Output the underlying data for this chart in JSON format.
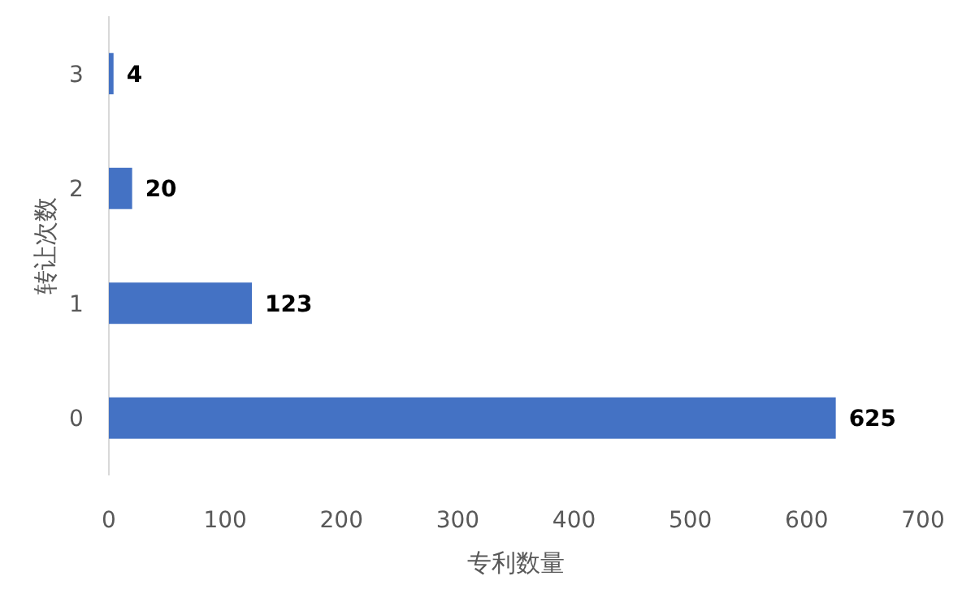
{
  "chart_data": {
    "type": "bar",
    "orientation": "horizontal",
    "xlabel": "专利数量",
    "ylabel": "转让次数",
    "categories": [
      "3",
      "2",
      "1",
      "0"
    ],
    "values": [
      4,
      20,
      123,
      625
    ],
    "color": "#4472c4",
    "xlim": [
      0,
      700
    ],
    "xticks": [
      0,
      100,
      200,
      300,
      400,
      500,
      600,
      700
    ],
    "data_labels": true,
    "grid": false
  }
}
